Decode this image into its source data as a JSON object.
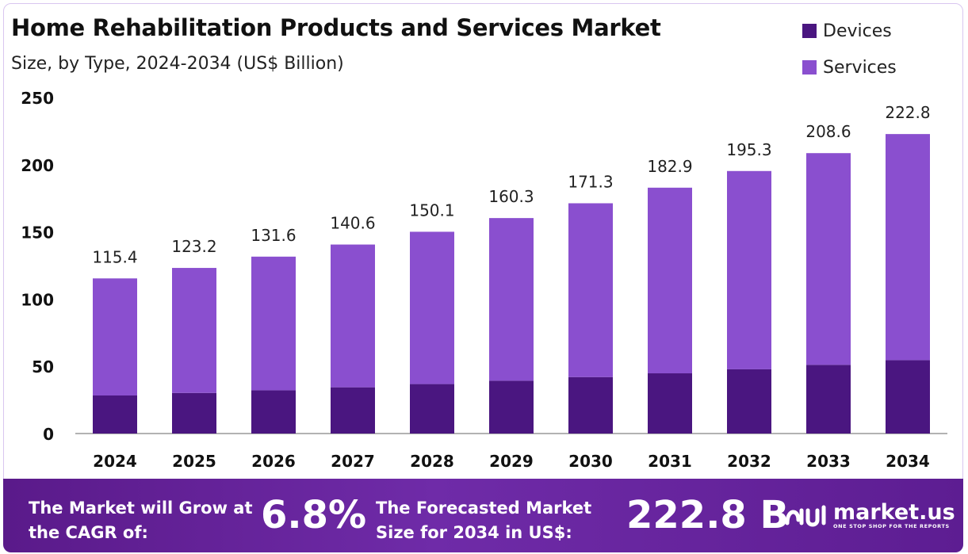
{
  "title": "Home Rehabilitation Products and Services Market",
  "subtitle": "Size, by Type, 2024-2034 (US$ Billion)",
  "colors": {
    "devices": "#4a1680",
    "services": "#8a4fcf",
    "axis": "#999999",
    "footer": "#6a27a3"
  },
  "chart_data": {
    "type": "bar",
    "stacked": true,
    "title": "Home Rehabilitation Products and Services Market",
    "subtitle": "Size, by Type, 2024-2034 (US$ Billion)",
    "categories": [
      "2024",
      "2025",
      "2026",
      "2027",
      "2028",
      "2029",
      "2030",
      "2031",
      "2032",
      "2033",
      "2034"
    ],
    "series": [
      {
        "name": "Devices",
        "values": [
          28.3,
          30.2,
          32.2,
          34.4,
          36.8,
          39.3,
          42.0,
          44.8,
          47.8,
          51.1,
          54.6
        ]
      },
      {
        "name": "Services",
        "values": [
          87.1,
          93.0,
          99.4,
          106.2,
          113.3,
          121.0,
          129.3,
          138.1,
          147.5,
          157.5,
          168.2
        ]
      }
    ],
    "totals": [
      "115.4",
      "123.2",
      "131.6",
      "140.6",
      "150.1",
      "160.3",
      "171.3",
      "182.9",
      "195.3",
      "208.6",
      "222.8"
    ],
    "yticks": [
      "0",
      "50",
      "100",
      "150",
      "200",
      "250"
    ],
    "ylim": [
      0,
      250
    ],
    "xlabel": "",
    "ylabel": "",
    "legend_position": "top-right",
    "grid": false
  },
  "footer": {
    "cagr_label": "The Market will Grow at the CAGR of:",
    "cagr_value": "6.8%",
    "forecast_label": "The Forecasted Market Size for 2034 in US$:",
    "forecast_value": "222.8 B",
    "brand_name": "market.us",
    "brand_tagline": "ONE STOP SHOP FOR THE REPORTS"
  }
}
